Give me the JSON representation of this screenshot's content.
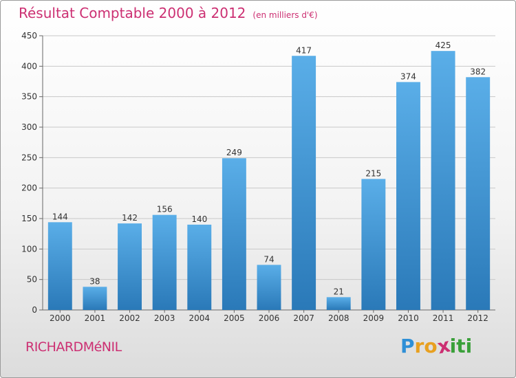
{
  "title": "Résultat Comptable 2000 à 2012",
  "unit_note": "(en milliers d'€)",
  "commune": "RICHARDMéNIL",
  "brand": {
    "letters": [
      "P",
      "r",
      "o",
      "x",
      "i",
      "t",
      "i"
    ],
    "colors": [
      "#2e8fd6",
      "#e8a020",
      "#e8a020",
      "#cc2f72",
      "#3aa03a",
      "#3aa03a",
      "#3aa03a"
    ]
  },
  "colors": {
    "bar": "#3a8fd0",
    "bar_light": "#5aaee8",
    "bar_dark": "#2a79b8",
    "title": "#cc2f72",
    "axis": "#666666",
    "grid": "#c8c8c8"
  },
  "chart_data": {
    "type": "bar",
    "categories": [
      "2000",
      "2001",
      "2002",
      "2003",
      "2004",
      "2005",
      "2006",
      "2007",
      "2008",
      "2009",
      "2010",
      "2011",
      "2012"
    ],
    "values": [
      144,
      38,
      142,
      156,
      140,
      249,
      74,
      417,
      21,
      215,
      374,
      425,
      382
    ],
    "ylim": [
      0,
      450
    ],
    "yticks": [
      0,
      50,
      100,
      150,
      200,
      250,
      300,
      350,
      400,
      450
    ],
    "grid": true,
    "data_labels": true
  }
}
